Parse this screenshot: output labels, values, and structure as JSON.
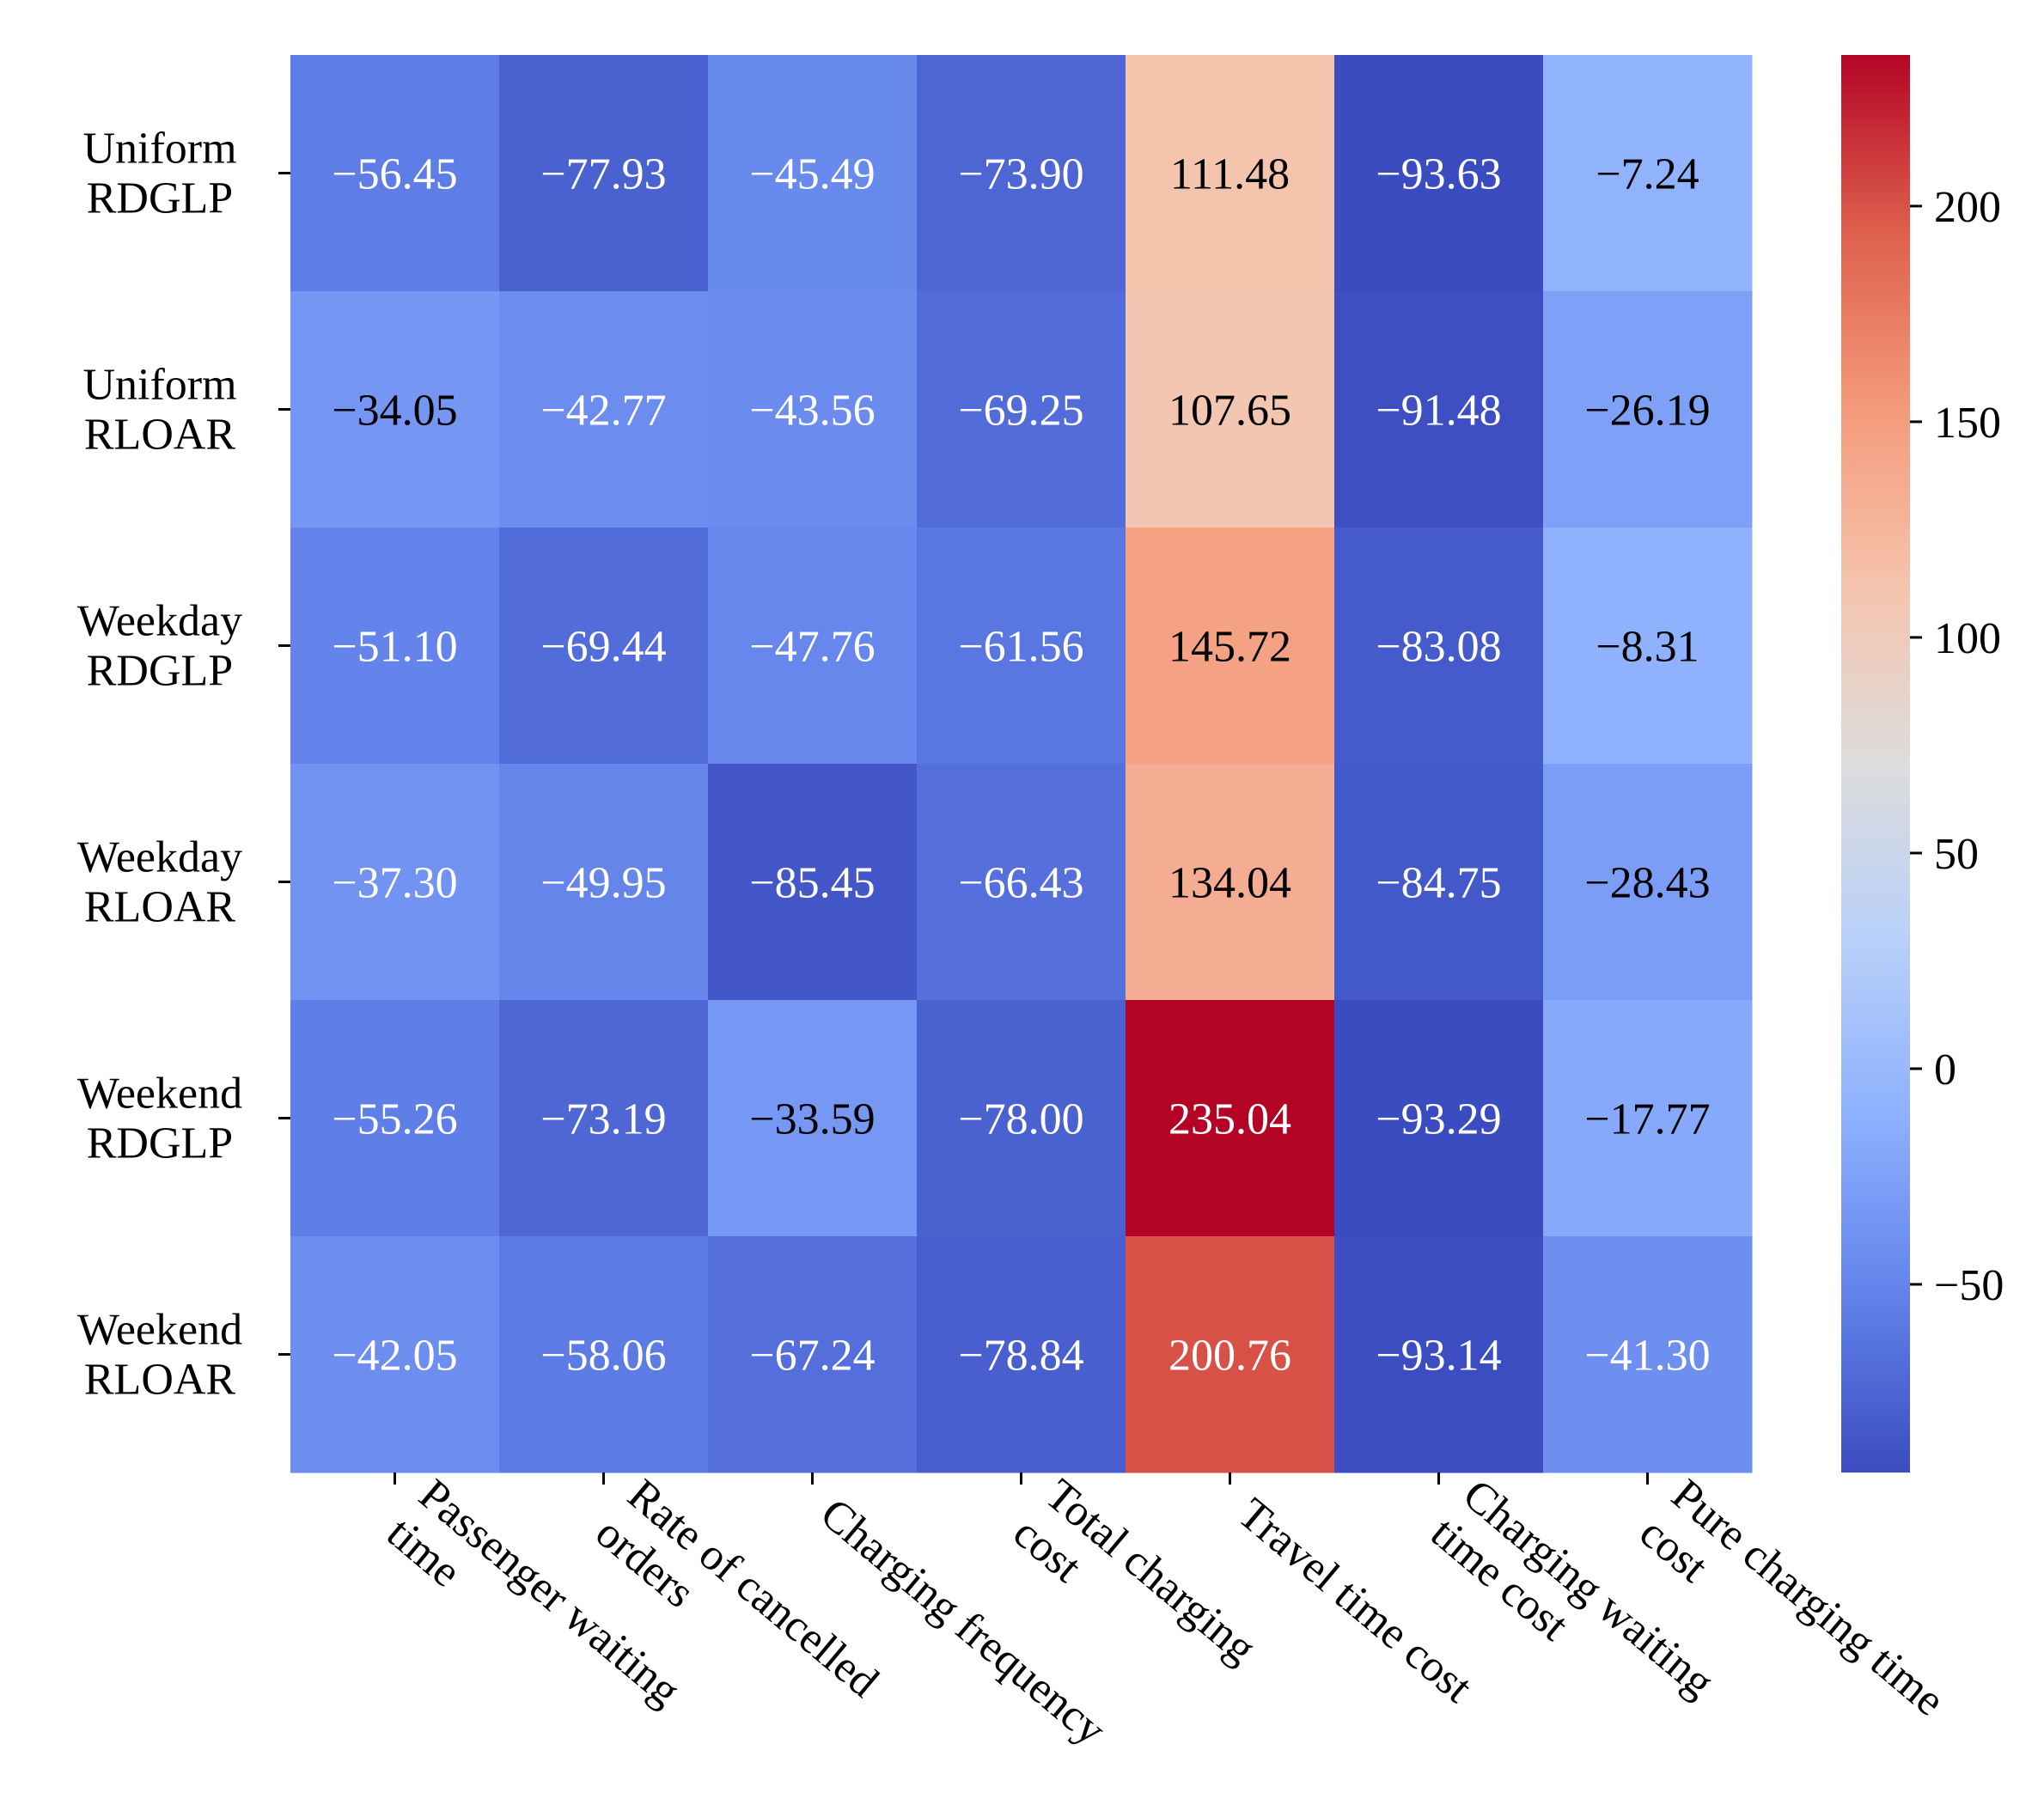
{
  "chart_data": {
    "type": "heatmap",
    "title": "",
    "xlabel": "",
    "ylabel": "",
    "rows": [
      [
        "Uniform",
        "RDGLP"
      ],
      [
        "Uniform",
        "RLOAR"
      ],
      [
        "Weekday",
        "RDGLP"
      ],
      [
        "Weekday",
        "RLOAR"
      ],
      [
        "Weekend",
        "RDGLP"
      ],
      [
        "Weekend",
        "RLOAR"
      ]
    ],
    "columns": [
      [
        "Passenger waiting",
        "time"
      ],
      [
        "Rate of cancelled",
        "orders"
      ],
      [
        "Charging frequency"
      ],
      [
        "Total charging",
        "cost"
      ],
      [
        "Travel time cost"
      ],
      [
        "Charging waiting",
        "time cost"
      ],
      [
        "Pure charging time",
        "cost"
      ]
    ],
    "values": [
      [
        -56.45,
        -77.93,
        -45.49,
        -73.9,
        111.48,
        -93.63,
        -7.24
      ],
      [
        -34.05,
        -42.77,
        -43.56,
        -69.25,
        107.65,
        -91.48,
        -26.19
      ],
      [
        -51.1,
        -69.44,
        -47.76,
        -61.56,
        145.72,
        -83.08,
        -8.31
      ],
      [
        -37.3,
        -49.95,
        -85.45,
        -66.43,
        134.04,
        -84.75,
        -28.43
      ],
      [
        -55.26,
        -73.19,
        -33.59,
        -78.0,
        235.04,
        -93.29,
        -17.77
      ],
      [
        -42.05,
        -58.06,
        -67.24,
        -78.84,
        200.76,
        -93.14,
        -41.3
      ]
    ],
    "value_format": "2 decimals",
    "colormap": "coolwarm",
    "vmin": -93.63,
    "vmax": 235.04,
    "colorbar_ticks": [
      200,
      150,
      100,
      50,
      0,
      -50
    ],
    "colors": {
      "text_dark": "#000000",
      "text_light": "#ffffff"
    }
  }
}
